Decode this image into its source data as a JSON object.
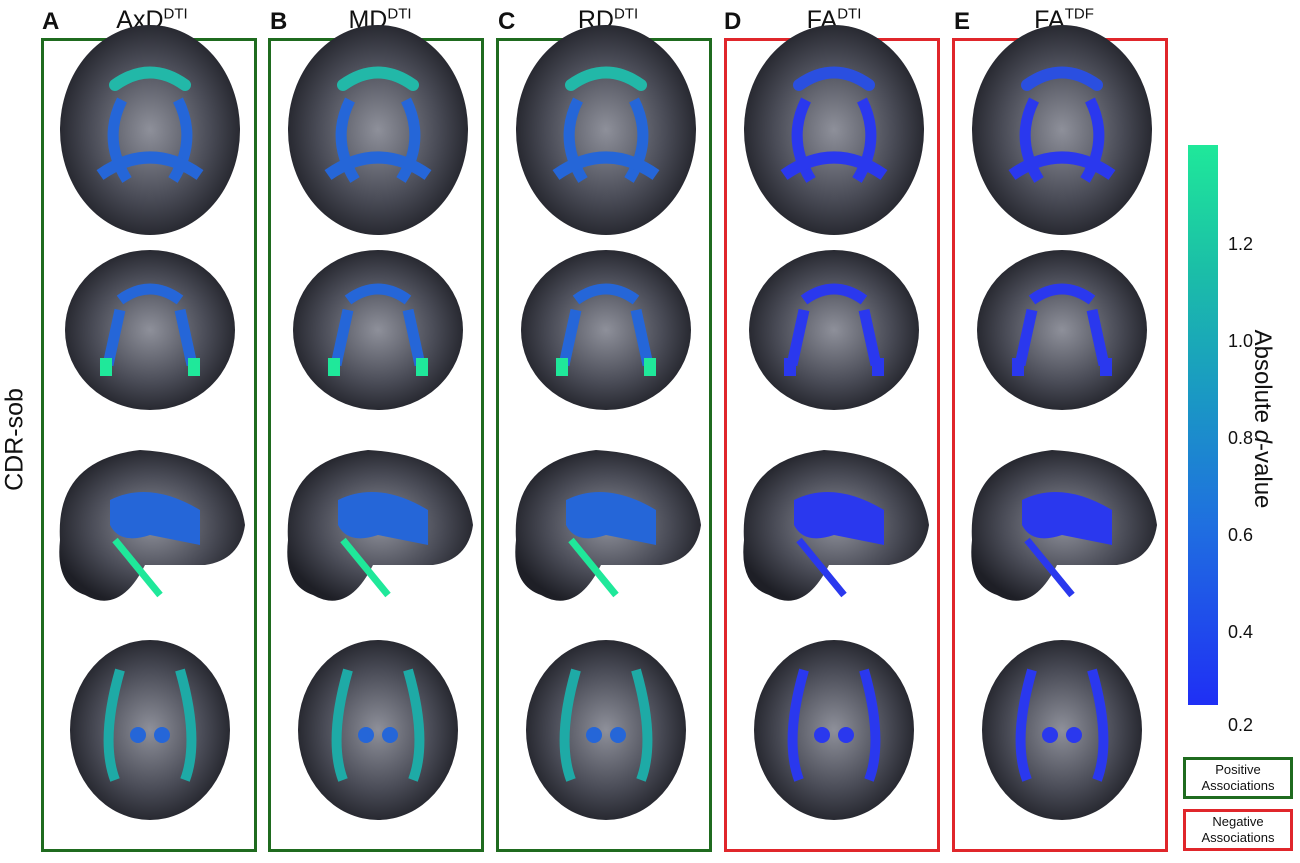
{
  "row_label": "CDR-sob",
  "panels": [
    {
      "letter": "A",
      "title": "AxD",
      "sup": "DTI",
      "assoc": "positive"
    },
    {
      "letter": "B",
      "title": "MD",
      "sup": "DTI",
      "assoc": "positive"
    },
    {
      "letter": "C",
      "title": "RD",
      "sup": "DTI",
      "assoc": "positive"
    },
    {
      "letter": "D",
      "title": "FA",
      "sup": "DTI",
      "assoc": "negative"
    },
    {
      "letter": "E",
      "title": "FA",
      "sup": "TDF",
      "assoc": "negative"
    }
  ],
  "colorbar": {
    "title_prefix": "Absolute ",
    "title_italic": "d",
    "title_suffix": "-value",
    "ticks": [
      "1.2",
      "1.0",
      "0.8",
      "0.6",
      "0.4",
      "0.2"
    ]
  },
  "legend": {
    "positive_line1": "Positive",
    "positive_line2": "Associations",
    "negative_line1": "Negative",
    "negative_line2": "Associations"
  },
  "colors": {
    "positive": "#1f6b1f",
    "negative": "#e0262b",
    "colormap_high": "#1fe89a",
    "colormap_low": "#1f2ff5",
    "brain": "#3b3d47"
  }
}
